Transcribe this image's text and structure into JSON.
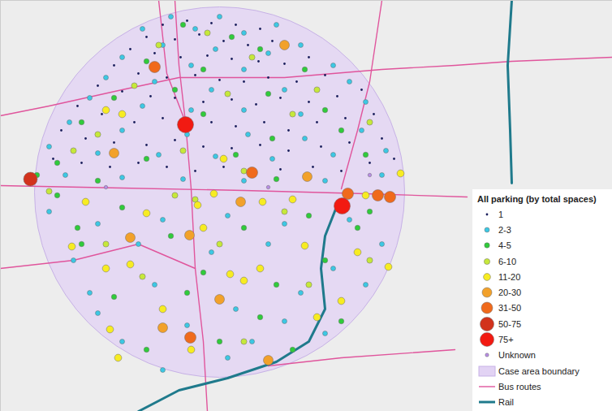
{
  "chart_data": {
    "type": "map",
    "legend_title": "All parking (by total spaces)",
    "legend": "bottom-right",
    "tick_labels": false,
    "grid": false,
    "xlim": [
      0,
      754
    ],
    "ylim": [
      506,
      0
    ],
    "series": [
      {
        "name": "1",
        "color": "#1b1f5c",
        "marker": "circle",
        "values": [
          [
            200,
            30
          ],
          [
            230,
            25
          ],
          [
            260,
            28
          ],
          [
            290,
            30
          ],
          [
            320,
            35
          ],
          [
            180,
            45
          ],
          [
            215,
            48
          ],
          [
            245,
            42
          ],
          [
            275,
            50
          ],
          [
            305,
            55
          ],
          [
            335,
            50
          ],
          [
            160,
            60
          ],
          [
            190,
            65
          ],
          [
            222,
            70
          ],
          [
            255,
            68
          ],
          [
            285,
            72
          ],
          [
            318,
            75
          ],
          [
            350,
            78
          ],
          [
            380,
            70
          ],
          [
            140,
            80
          ],
          [
            170,
            90
          ],
          [
            205,
            95
          ],
          [
            240,
            92
          ],
          [
            270,
            98
          ],
          [
            300,
            100
          ],
          [
            330,
            95
          ],
          [
            365,
            100
          ],
          [
            400,
            92
          ],
          [
            120,
            105
          ],
          [
            150,
            112
          ],
          [
            185,
            118
          ],
          [
            215,
            120
          ],
          [
            250,
            125
          ],
          [
            285,
            122
          ],
          [
            315,
            128
          ],
          [
            345,
            120
          ],
          [
            380,
            125
          ],
          [
            415,
            118
          ],
          [
            445,
            110
          ],
          [
            95,
            130
          ],
          [
            125,
            140
          ],
          [
            165,
            150
          ],
          [
            200,
            145
          ],
          [
            260,
            150
          ],
          [
            290,
            155
          ],
          [
            325,
            150
          ],
          [
            355,
            160
          ],
          [
            390,
            150
          ],
          [
            425,
            145
          ],
          [
            460,
            140
          ],
          [
            75,
            160
          ],
          [
            105,
            170
          ],
          [
            140,
            175
          ],
          [
            180,
            178
          ],
          [
            215,
            172
          ],
          [
            250,
            180
          ],
          [
            285,
            182
          ],
          [
            320,
            178
          ],
          [
            355,
            185
          ],
          [
            395,
            180
          ],
          [
            430,
            175
          ],
          [
            470,
            170
          ],
          [
            65,
            195
          ],
          [
            100,
            200
          ],
          [
            135,
            205
          ],
          [
            170,
            200
          ],
          [
            205,
            205
          ],
          [
            240,
            210
          ],
          [
            275,
            205
          ],
          [
            345,
            208
          ],
          [
            385,
            205
          ],
          [
            420,
            210
          ],
          [
            455,
            200
          ],
          [
            485,
            195
          ]
        ]
      },
      {
        "name": "2-3",
        "color": "#3cc8e4",
        "marker": "circle",
        "values": [
          [
            210,
            20
          ],
          [
            270,
            20
          ],
          [
            175,
            35
          ],
          [
            240,
            35
          ],
          [
            300,
            40
          ],
          [
            340,
            30
          ],
          [
            200,
            55
          ],
          [
            265,
            60
          ],
          [
            330,
            65
          ],
          [
            370,
            55
          ],
          [
            150,
            70
          ],
          [
            235,
            80
          ],
          [
            300,
            85
          ],
          [
            410,
            80
          ],
          [
            130,
            95
          ],
          [
            190,
            100
          ],
          [
            260,
            110
          ],
          [
            350,
            110
          ],
          [
            430,
            100
          ],
          [
            110,
            120
          ],
          [
            175,
            130
          ],
          [
            235,
            135
          ],
          [
            300,
            135
          ],
          [
            370,
            140
          ],
          [
            450,
            125
          ],
          [
            85,
            150
          ],
          [
            150,
            160
          ],
          [
            230,
            165
          ],
          [
            305,
            165
          ],
          [
            375,
            170
          ],
          [
            445,
            160
          ],
          [
            60,
            180
          ],
          [
            120,
            188
          ],
          [
            195,
            190
          ],
          [
            265,
            192
          ],
          [
            335,
            195
          ],
          [
            410,
            190
          ],
          [
            475,
            185
          ],
          [
            80,
            215
          ],
          [
            150,
            218
          ],
          [
            225,
            220
          ],
          [
            300,
            222
          ],
          [
            400,
            222
          ],
          [
            470,
            215
          ],
          [
            60,
            260
          ],
          [
            120,
            275
          ],
          [
            200,
            270
          ],
          [
            280,
            265
          ],
          [
            350,
            275
          ],
          [
            430,
            270
          ],
          [
            90,
            320
          ],
          [
            170,
            300
          ],
          [
            260,
            310
          ],
          [
            330,
            300
          ],
          [
            410,
            330
          ],
          [
            470,
            300
          ],
          [
            110,
            360
          ],
          [
            190,
            350
          ],
          [
            290,
            380
          ],
          [
            370,
            360
          ],
          [
            450,
            350
          ],
          [
            150,
            420
          ],
          [
            230,
            400
          ],
          [
            310,
            420
          ],
          [
            400,
            410
          ],
          [
            280,
            440
          ],
          [
            200,
            455
          ],
          [
            120,
            385
          ],
          [
            350,
            395
          ]
        ]
      },
      {
        "name": "4-5",
        "color": "#2fcc3a",
        "marker": "circle",
        "values": [
          [
            225,
            30
          ],
          [
            285,
            45
          ],
          [
            180,
            75
          ],
          [
            320,
            60
          ],
          [
            250,
            85
          ],
          [
            375,
            85
          ],
          [
            140,
            120
          ],
          [
            215,
            110
          ],
          [
            330,
            115
          ],
          [
            400,
            135
          ],
          [
            100,
            150
          ],
          [
            250,
            140
          ],
          [
            335,
            170
          ],
          [
            420,
            160
          ],
          [
            70,
            200
          ],
          [
            180,
            195
          ],
          [
            290,
            190
          ],
          [
            450,
            190
          ],
          [
            120,
            222
          ],
          [
            340,
            220
          ],
          [
            45,
            215
          ],
          [
            70,
            240
          ],
          [
            150,
            255
          ],
          [
            210,
            290
          ],
          [
            300,
            280
          ],
          [
            380,
            265
          ],
          [
            455,
            260
          ],
          [
            100,
            300
          ],
          [
            250,
            335
          ],
          [
            340,
            350
          ],
          [
            400,
            320
          ],
          [
            140,
            365
          ],
          [
            230,
            360
          ],
          [
            320,
            390
          ],
          [
            420,
            395
          ],
          [
            180,
            430
          ],
          [
            270,
            420
          ],
          [
            360,
            430
          ],
          [
            95,
            280
          ],
          [
            440,
            280
          ]
        ]
      },
      {
        "name": "6-10",
        "color": "#c6e83a",
        "marker": "circle",
        "values": [
          [
            255,
            40
          ],
          [
            195,
            55
          ],
          [
            310,
            70
          ],
          [
            165,
            105
          ],
          [
            280,
            115
          ],
          [
            390,
            110
          ],
          [
            120,
            165
          ],
          [
            225,
            185
          ],
          [
            360,
            140
          ],
          [
            455,
            150
          ],
          [
            90,
            185
          ],
          [
            300,
            210
          ],
          [
            215,
            240
          ],
          [
            60,
            235
          ],
          [
            350,
            260
          ],
          [
            270,
            300
          ],
          [
            175,
            340
          ],
          [
            380,
            350
          ],
          [
            130,
            300
          ],
          [
            300,
            420
          ],
          [
            455,
            320
          ],
          [
            240,
            245
          ]
        ]
      },
      {
        "name": "11-20",
        "color": "#f7ec22",
        "marker": "circle",
        "values": [
          [
            130,
            135
          ],
          [
            150,
            140
          ],
          [
            105,
            248
          ],
          [
            88,
            303
          ],
          [
            180,
            262
          ],
          [
            243,
            252
          ],
          [
            130,
            330
          ],
          [
            200,
            380
          ],
          [
            300,
            345
          ],
          [
            283,
            337
          ],
          [
            320,
            330
          ],
          [
            420,
            370
          ],
          [
            375,
            302
          ],
          [
            145,
            440
          ],
          [
            235,
            430
          ],
          [
            450,
            240
          ],
          [
            493,
            213
          ],
          [
            478,
            328
          ],
          [
            263,
            238
          ],
          [
            440,
            310
          ],
          [
            360,
            245
          ],
          [
            323,
            248
          ],
          [
            250,
            280
          ],
          [
            135,
            405
          ],
          [
            160,
            325
          ],
          [
            275,
            195
          ],
          [
            390,
            390
          ]
        ]
      },
      {
        "name": "20-30",
        "color": "#f2a12a",
        "marker": "circle",
        "values": [
          [
            350,
            55
          ],
          [
            140,
            188
          ],
          [
            296,
            248
          ],
          [
            160,
            292
          ],
          [
            233,
            289
          ],
          [
            270,
            368
          ],
          [
            200,
            403
          ],
          [
            330,
            443
          ],
          [
            378,
            217
          ]
        ]
      },
      {
        "name": "31-50",
        "color": "#f06a1c",
        "marker": "circle",
        "values": [
          [
            190,
            82
          ],
          [
            465,
            240
          ],
          [
            480,
            242
          ],
          [
            428,
            238
          ],
          [
            234,
            415
          ],
          [
            310,
            212
          ]
        ]
      },
      {
        "name": "50-75",
        "color": "#d2321c",
        "marker": "circle",
        "values": [
          [
            37,
            220
          ]
        ]
      },
      {
        "name": "75+",
        "color": "#f21a12",
        "marker": "circle",
        "values": [
          [
            228,
            153
          ],
          [
            421,
            253
          ]
        ]
      },
      {
        "name": "Unknown",
        "color": "#b88ee6",
        "marker": "circle",
        "values": [
          [
            455,
            215
          ],
          [
            130,
            230
          ],
          [
            330,
            230
          ]
        ]
      }
    ],
    "case_area": {
      "name": "Case area boundary",
      "color": "#e2d3f4",
      "center": [
        270,
        236
      ],
      "radius": 228
    },
    "bus_routes": {
      "name": "Bus routes",
      "color": "#e0559c",
      "lines": [
        [
          [
            0,
            228
          ],
          [
            150,
            231
          ],
          [
            300,
            234
          ],
          [
            450,
            238
          ],
          [
            575,
            242
          ]
        ],
        [
          [
            0,
            142
          ],
          [
            60,
            130
          ],
          [
            150,
            110
          ],
          [
            220,
            95
          ],
          [
            350,
            95
          ],
          [
            470,
            85
          ],
          [
            560,
            80
          ],
          [
            630,
            75
          ],
          [
            754,
            70
          ]
        ],
        [
          [
            215,
            0
          ],
          [
            220,
            80
          ],
          [
            228,
            150
          ],
          [
            235,
            232
          ],
          [
            240,
            330
          ],
          [
            250,
            420
          ],
          [
            255,
            506
          ]
        ],
        [
          [
            195,
            0
          ],
          [
            205,
            90
          ],
          [
            228,
            150
          ]
        ],
        [
          [
            470,
            0
          ],
          [
            455,
            100
          ],
          [
            440,
            160
          ],
          [
            420,
            232
          ]
        ],
        [
          [
            330,
            450
          ],
          [
            420,
            440
          ],
          [
            560,
            430
          ]
        ],
        [
          [
            0,
            330
          ],
          [
            90,
            320
          ],
          [
            170,
            300
          ],
          [
            240,
            330
          ]
        ]
      ]
    },
    "rail": {
      "name": "Rail",
      "color": "#1f7a8c",
      "lines": [
        [
          [
            415,
            252
          ],
          [
            400,
            290
          ],
          [
            395,
            330
          ],
          [
            400,
            380
          ],
          [
            380,
            420
          ],
          [
            340,
            445
          ],
          [
            280,
            465
          ],
          [
            220,
            480
          ],
          [
            170,
            506
          ]
        ],
        [
          [
            630,
            0
          ],
          [
            625,
            80
          ],
          [
            628,
            160
          ],
          [
            630,
            225
          ]
        ]
      ]
    }
  }
}
